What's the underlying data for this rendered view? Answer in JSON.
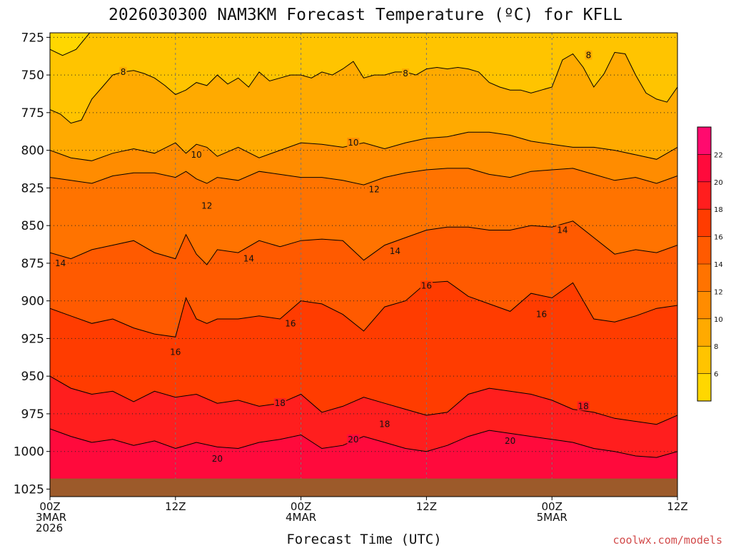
{
  "chart_data": {
    "type": "filled-contour",
    "title": "2026030300 NAM3KM Forecast Temperature (ºC) for KFLL",
    "xlabel": "Forecast Time (UTC)",
    "ylabel": "",
    "y_ticks": [
      725,
      750,
      775,
      800,
      825,
      850,
      875,
      900,
      925,
      950,
      975,
      1000,
      1025
    ],
    "ylim": [
      1030,
      722
    ],
    "xlim": [
      0,
      60
    ],
    "x_ticks": [
      {
        "hour": 0,
        "lines": [
          "00Z",
          "3MAR",
          "2026"
        ]
      },
      {
        "hour": 12,
        "lines": [
          "12Z"
        ]
      },
      {
        "hour": 24,
        "lines": [
          "00Z",
          "4MAR"
        ]
      },
      {
        "hour": 36,
        "lines": [
          "12Z"
        ]
      },
      {
        "hour": 48,
        "lines": [
          "00Z",
          "5MAR"
        ]
      },
      {
        "hour": 60,
        "lines": [
          "12Z"
        ]
      }
    ],
    "grid": true,
    "color_levels": [
      6,
      8,
      10,
      12,
      14,
      16,
      18,
      20,
      22
    ],
    "colorbar_labels": [
      "6",
      "8",
      "10",
      "12",
      "14",
      "16",
      "18",
      "20",
      "22"
    ],
    "colors": [
      "#ffd700",
      "#ffc400",
      "#ffaa00",
      "#ff8c00",
      "#ff7300",
      "#ff5a00",
      "#ff3c00",
      "#ff1e1e",
      "#ff0a3c",
      "#ff0a6e"
    ],
    "ground_color": "#9c5a2a",
    "surface_pressure_hpa": 1018,
    "isotherms": [
      {
        "level": 8,
        "x_hours": [
          0,
          1,
          2,
          3,
          4,
          5,
          6,
          7,
          8,
          9,
          10,
          11,
          12,
          13,
          14,
          15,
          16,
          17,
          18,
          19,
          20,
          21,
          22,
          23,
          24,
          25,
          26,
          27,
          28,
          29,
          30,
          31,
          32,
          33,
          34,
          35,
          36,
          37,
          38,
          39,
          40,
          41,
          42,
          43,
          44,
          45,
          46,
          47,
          48,
          49,
          50,
          51,
          52,
          53,
          54,
          55,
          56,
          57,
          58,
          59,
          60
        ],
        "pressure": [
          773,
          776,
          782,
          780,
          766,
          758,
          750,
          748,
          747,
          749,
          752,
          757,
          763,
          760,
          755,
          757,
          750,
          756,
          752,
          758,
          748,
          754,
          752,
          750,
          750,
          752,
          748,
          750,
          746,
          741,
          752,
          750,
          750,
          748,
          748,
          750,
          746,
          745,
          746,
          745,
          746,
          748,
          755,
          758,
          760,
          760,
          762,
          760,
          758,
          740,
          736,
          745,
          758,
          749,
          735,
          736,
          750,
          762,
          766,
          768,
          758
        ]
      },
      {
        "level": 10,
        "x_hours": [
          0,
          2,
          4,
          6,
          8,
          10,
          12,
          13,
          14,
          15,
          16,
          18,
          20,
          22,
          24,
          26,
          28,
          30,
          32,
          34,
          36,
          38,
          40,
          42,
          44,
          46,
          48,
          50,
          52,
          54,
          56,
          58,
          60
        ],
        "pressure": [
          800,
          805,
          807,
          802,
          799,
          802,
          795,
          802,
          796,
          798,
          804,
          798,
          805,
          800,
          795,
          796,
          798,
          795,
          799,
          795,
          792,
          791,
          788,
          788,
          790,
          794,
          796,
          798,
          798,
          800,
          803,
          806,
          798
        ]
      },
      {
        "level": 12,
        "x_hours": [
          0,
          2,
          4,
          6,
          8,
          10,
          12,
          13,
          14,
          15,
          16,
          18,
          20,
          22,
          24,
          26,
          28,
          30,
          32,
          34,
          36,
          38,
          40,
          42,
          44,
          46,
          48,
          50,
          52,
          54,
          56,
          58,
          60
        ],
        "pressure": [
          818,
          820,
          822,
          817,
          815,
          815,
          818,
          814,
          819,
          822,
          818,
          820,
          814,
          816,
          818,
          818,
          820,
          823,
          818,
          815,
          813,
          812,
          812,
          816,
          818,
          814,
          813,
          812,
          816,
          820,
          818,
          822,
          817
        ]
      },
      {
        "level": 14,
        "x_hours": [
          0,
          2,
          4,
          6,
          8,
          10,
          12,
          13,
          14,
          15,
          16,
          18,
          20,
          22,
          24,
          26,
          28,
          30,
          32,
          34,
          36,
          38,
          40,
          42,
          44,
          46,
          48,
          50,
          52,
          54,
          56,
          58,
          60
        ],
        "pressure": [
          868,
          872,
          866,
          863,
          860,
          868,
          872,
          856,
          869,
          876,
          866,
          868,
          860,
          864,
          860,
          859,
          860,
          873,
          863,
          858,
          853,
          851,
          851,
          853,
          853,
          850,
          851,
          847,
          858,
          869,
          866,
          868,
          863
        ]
      },
      {
        "level": 16,
        "x_hours": [
          0,
          2,
          4,
          6,
          8,
          10,
          12,
          13,
          14,
          15,
          16,
          18,
          20,
          22,
          24,
          26,
          28,
          30,
          32,
          34,
          36,
          38,
          40,
          42,
          44,
          46,
          48,
          50,
          52,
          54,
          56,
          58,
          60
        ],
        "pressure": [
          905,
          910,
          915,
          912,
          918,
          922,
          924,
          898,
          912,
          915,
          912,
          912,
          910,
          912,
          900,
          902,
          909,
          920,
          904,
          900,
          888,
          887,
          897,
          902,
          907,
          895,
          898,
          888,
          912,
          914,
          910,
          905,
          903
        ]
      },
      {
        "level": 18,
        "x_hours": [
          0,
          2,
          4,
          6,
          8,
          10,
          12,
          14,
          16,
          18,
          20,
          22,
          24,
          26,
          28,
          30,
          32,
          34,
          36,
          38,
          40,
          42,
          44,
          46,
          48,
          50,
          52,
          54,
          56,
          58,
          60
        ],
        "pressure": [
          950,
          958,
          962,
          960,
          967,
          960,
          964,
          962,
          968,
          966,
          970,
          968,
          962,
          974,
          970,
          964,
          968,
          972,
          976,
          974,
          962,
          958,
          960,
          962,
          966,
          972,
          974,
          978,
          980,
          982,
          976
        ]
      },
      {
        "level": 20,
        "x_hours": [
          0,
          2,
          4,
          6,
          8,
          10,
          12,
          14,
          16,
          18,
          20,
          22,
          24,
          26,
          28,
          30,
          32,
          34,
          36,
          38,
          40,
          42,
          44,
          46,
          48,
          50,
          52,
          54,
          56,
          58,
          60
        ],
        "pressure": [
          985,
          990,
          994,
          992,
          996,
          993,
          998,
          994,
          997,
          998,
          994,
          992,
          989,
          998,
          996,
          990,
          994,
          998,
          1000,
          996,
          990,
          986,
          988,
          990,
          992,
          994,
          998,
          1000,
          1003,
          1004,
          1000
        ]
      }
    ],
    "contour_labels": [
      {
        "text": "8",
        "hour": 7,
        "pressure": 748
      },
      {
        "text": "8",
        "hour": 34,
        "pressure": 749
      },
      {
        "text": "8",
        "hour": 51.5,
        "pressure": 737
      },
      {
        "text": "10",
        "hour": 14,
        "pressure": 803
      },
      {
        "text": "10",
        "hour": 29,
        "pressure": 795
      },
      {
        "text": "12",
        "hour": 15,
        "pressure": 837
      },
      {
        "text": "12",
        "hour": 31,
        "pressure": 826
      },
      {
        "text": "14",
        "hour": 1,
        "pressure": 875
      },
      {
        "text": "14",
        "hour": 19,
        "pressure": 872
      },
      {
        "text": "14",
        "hour": 33,
        "pressure": 867
      },
      {
        "text": "14",
        "hour": 49,
        "pressure": 853
      },
      {
        "text": "16",
        "hour": 12,
        "pressure": 934
      },
      {
        "text": "16",
        "hour": 23,
        "pressure": 915
      },
      {
        "text": "16",
        "hour": 36,
        "pressure": 890
      },
      {
        "text": "16",
        "hour": 47,
        "pressure": 909
      },
      {
        "text": "18",
        "hour": 22,
        "pressure": 968
      },
      {
        "text": "18",
        "hour": 32,
        "pressure": 982
      },
      {
        "text": "18",
        "hour": 51,
        "pressure": 970
      },
      {
        "text": "20",
        "hour": 16,
        "pressure": 1005
      },
      {
        "text": "20",
        "hour": 29,
        "pressure": 992
      },
      {
        "text": "20",
        "hour": 44,
        "pressure": 993
      }
    ],
    "credit": "coolwx.com/models"
  }
}
